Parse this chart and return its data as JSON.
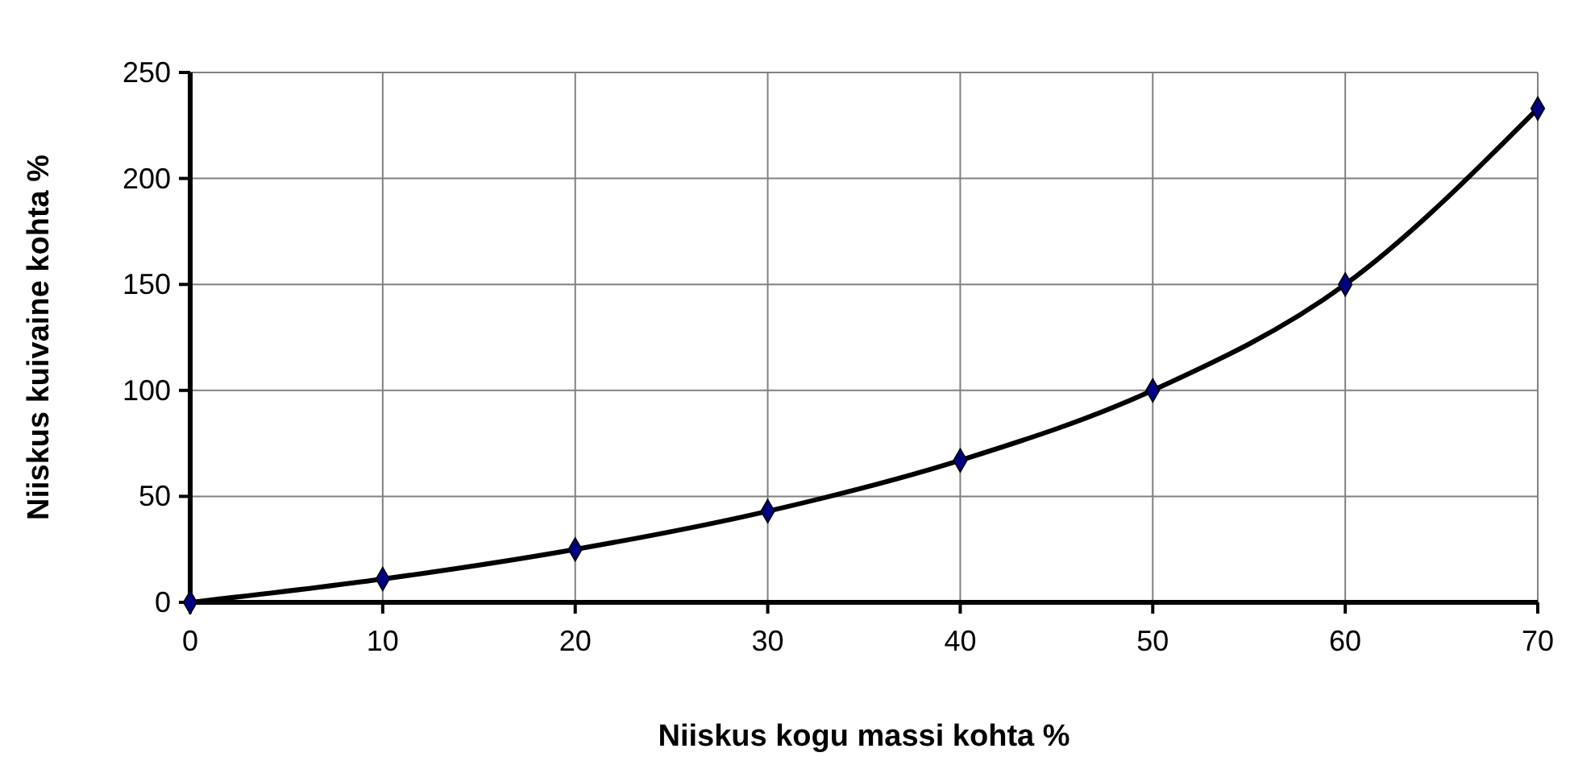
{
  "chart_data": {
    "type": "line",
    "xlabel": "Niiskus kogu massi kohta %",
    "ylabel": "Niiskus kuivaine kohta %",
    "x": [
      0,
      10,
      20,
      30,
      40,
      50,
      60,
      70
    ],
    "series": [
      {
        "color": "#000000",
        "values": [
          0,
          11,
          25,
          43,
          67,
          100,
          150,
          233
        ]
      }
    ],
    "xlim": [
      0,
      70
    ],
    "xticks": [
      0,
      10,
      20,
      30,
      40,
      50,
      60,
      70
    ],
    "ylim": [
      0,
      250
    ],
    "yticks": [
      0,
      50,
      100,
      150,
      200,
      250
    ],
    "grid": true,
    "marker": "diamond",
    "line_style": "solid"
  }
}
